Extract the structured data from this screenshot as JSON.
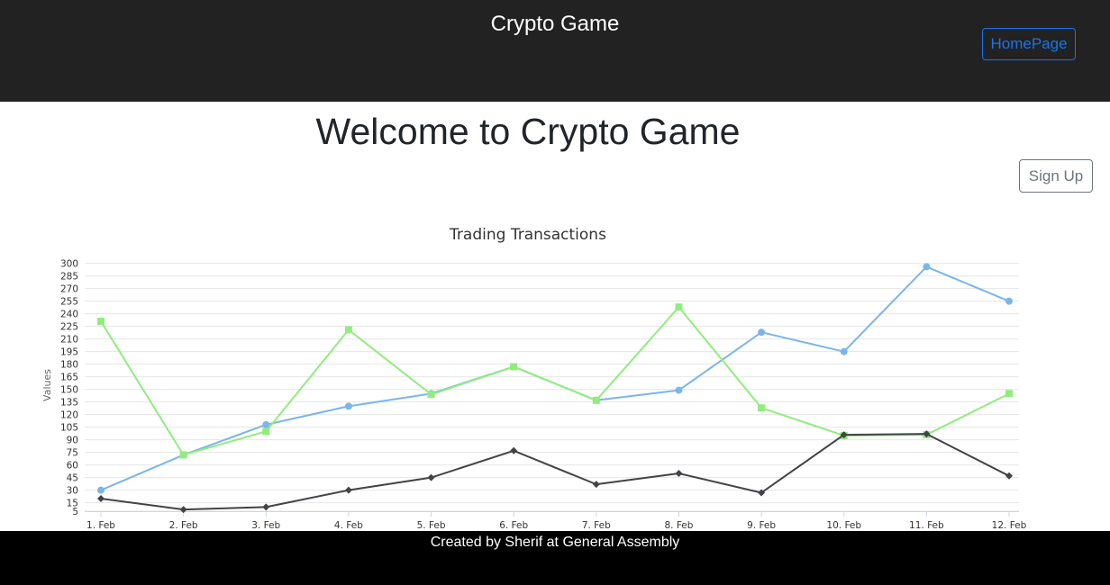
{
  "header": {
    "title": "Crypto Game",
    "home_button": "HomePage",
    "background_color": "#222222"
  },
  "main": {
    "welcome": "Welcome to Crypto Game",
    "signup_button": "Sign Up"
  },
  "footer": {
    "credit": "Created by Sherif at General Assembly"
  },
  "chart_data": {
    "type": "line",
    "title": "Trading Transactions",
    "xlabel": "",
    "ylabel": "Values",
    "categories": [
      "1. Feb",
      "2. Feb",
      "3. Feb",
      "4. Feb",
      "5. Feb",
      "6. Feb",
      "7. Feb",
      "8. Feb",
      "9. Feb",
      "10. Feb",
      "11. Feb",
      "12. Feb"
    ],
    "ylim": [
      5,
      305
    ],
    "yticks": [
      5,
      15,
      30,
      45,
      60,
      75,
      90,
      105,
      120,
      135,
      150,
      165,
      180,
      195,
      210,
      225,
      240,
      255,
      270,
      285,
      300
    ],
    "grid": true,
    "legend": "none",
    "series": [
      {
        "color": "#7cb5ec",
        "marker": "circle",
        "values": [
          30,
          72,
          108,
          130,
          145,
          177,
          137,
          149,
          218,
          195,
          296,
          255
        ]
      },
      {
        "color": "#90ed7d",
        "marker": "square",
        "values": [
          231,
          72,
          100,
          221,
          144,
          177,
          137,
          248,
          128,
          95,
          96,
          145
        ]
      },
      {
        "color": "#434348",
        "marker": "diamond",
        "values": [
          20,
          7,
          10,
          30,
          45,
          77,
          37,
          50,
          27,
          96,
          97,
          47
        ]
      }
    ]
  }
}
